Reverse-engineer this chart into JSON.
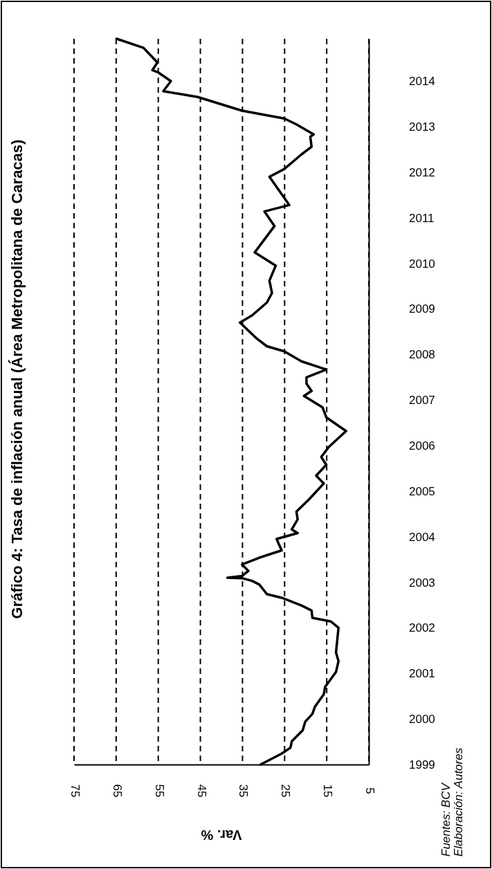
{
  "chart_data": {
    "type": "line",
    "title": "Gráfico 4: Tasa de inflación anual (Área Metropolitana de Caracas)",
    "xlabel": "Var. %",
    "annotations": [
      "Fuentes: BCV",
      "Elaboración: Autores"
    ],
    "x": [
      30.7,
      25.7,
      23.6,
      23.3,
      20.7,
      20.1,
      18.4,
      17.8,
      15.7,
      15.4,
      12.8,
      12.2,
      12.8,
      12.5,
      12.2,
      14.0,
      18.4,
      18.6,
      21.0,
      25.7,
      29.2,
      31.0,
      32.7,
      35.1,
      38.6,
      35.1,
      33.6,
      35.1,
      31.0,
      25.7,
      26.9,
      21.9,
      23.3,
      21.9,
      22.2,
      19.2,
      15.7,
      17.5,
      15.1,
      16.3,
      14.5,
      10.4,
      15.1,
      16.0,
      20.4,
      18.6,
      19.8,
      19.8,
      15.1,
      21.0,
      25.1,
      29.2,
      31.5,
      35.6,
      32.7,
      29.2,
      28.0,
      28.6,
      27.1,
      32.1,
      27.4,
      29.8,
      23.9,
      28.6,
      25.1,
      21.0,
      18.6,
      18.9,
      18.1,
      22.2,
      25.1,
      35.1,
      45.6,
      53.8,
      52.0,
      55.0,
      56.4,
      55.2,
      58.5,
      64.9
    ],
    "series": [
      {
        "color": "#000000",
        "values": [
          1999.0,
          1999.24,
          1999.37,
          1999.51,
          1999.75,
          1999.94,
          2000.11,
          2000.27,
          2000.54,
          2000.7,
          2001.03,
          2001.27,
          2001.46,
          2001.73,
          2002.0,
          2002.14,
          2002.22,
          2002.38,
          2002.49,
          2002.66,
          2002.74,
          2002.95,
          2003.03,
          2003.09,
          2003.1,
          2003.14,
          2003.25,
          2003.39,
          2003.54,
          2003.7,
          2003.95,
          2004.08,
          2004.16,
          2004.38,
          2004.55,
          2004.82,
          2005.17,
          2005.34,
          2005.58,
          2005.75,
          2005.97,
          2006.32,
          2006.62,
          2006.84,
          2007.09,
          2007.2,
          2007.36,
          2007.5,
          2007.67,
          2007.85,
          2008.07,
          2008.18,
          2008.34,
          2008.7,
          2008.86,
          2009.14,
          2009.35,
          2009.62,
          2009.95,
          2010.24,
          2010.82,
          2011.14,
          2011.28,
          2011.9,
          2012.07,
          2012.39,
          2012.56,
          2012.78,
          2012.83,
          2013.05,
          2013.18,
          2013.35,
          2013.65,
          2013.78,
          2014.0,
          2014.19,
          2014.24,
          2014.41,
          2014.73,
          2014.93
        ]
      }
    ],
    "xlim": [
      75,
      5
    ],
    "xticks": [
      75,
      65,
      55,
      45,
      35,
      25,
      15,
      5
    ],
    "ylim": [
      1999,
      2014.93
    ],
    "yticks": [
      1999,
      2000,
      2001,
      2002,
      2003,
      2004,
      2005,
      2006,
      2007,
      2008,
      2009,
      2010,
      2011,
      2012,
      2013,
      2014
    ],
    "grid": "x",
    "line_style": "solid",
    "marker": "none"
  }
}
